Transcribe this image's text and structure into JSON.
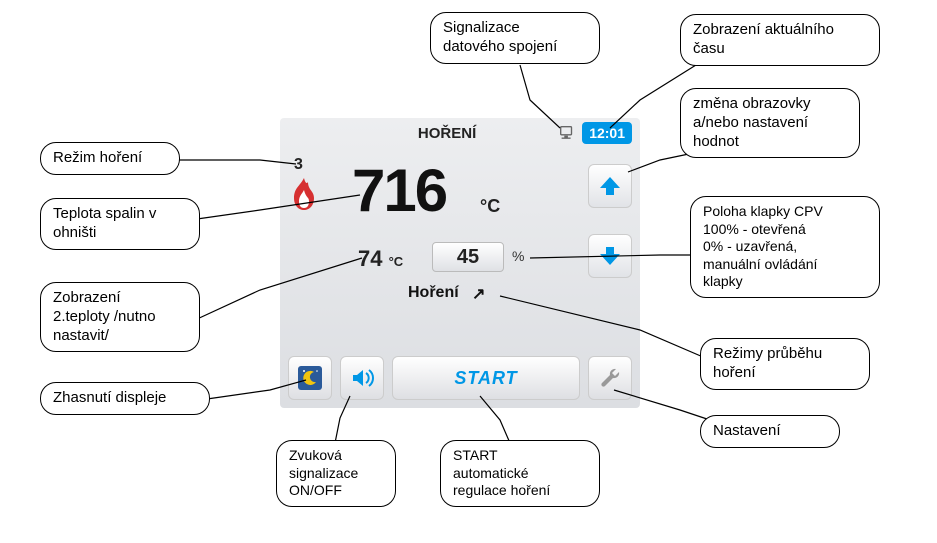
{
  "panel": {
    "header_title": "HOŘENÍ",
    "clock": "12:01",
    "mode_num": "3",
    "big_temp": "716",
    "big_unit": "°C",
    "temp2": "74",
    "temp2_unit": "°C",
    "damper_pct": "45",
    "pct_unit": "%",
    "mode_label": "Hoření",
    "mode_arrow": "↗",
    "start_label": "START"
  },
  "callouts": {
    "conn": "Signalizace\ndatového spojení",
    "clock": "Zobrazení aktuálního\nčasu",
    "screen": "změna obrazovky\na/nebo nastavení\nhodnot",
    "mode": "Režim hoření",
    "flue": "Teplota spalin v\nohništi",
    "temp2": "Zobrazení\n2.teploty /nutno\nnastavit/",
    "display_off": "Zhasnutí displeje",
    "sound": "Zvuková\nsignalizace\nON/OFF",
    "start": "START\nautomatické\nregulace hoření",
    "damper": "Poloha klapky CPV\n100% - otevřená\n0% - uzavřená,\nmanuální ovládání\nklapky",
    "burn_modes": "Režimy průběhu\nhoření",
    "settings": "Nastavení"
  },
  "colors": {
    "accent": "#0097e6",
    "flame": "#d63031",
    "panel_bg_top": "#edeef0",
    "panel_bg_bot": "#dcdee2",
    "btn_bg_top": "#ffffff",
    "btn_bg_bot": "#dedfe3",
    "text": "#111111"
  }
}
